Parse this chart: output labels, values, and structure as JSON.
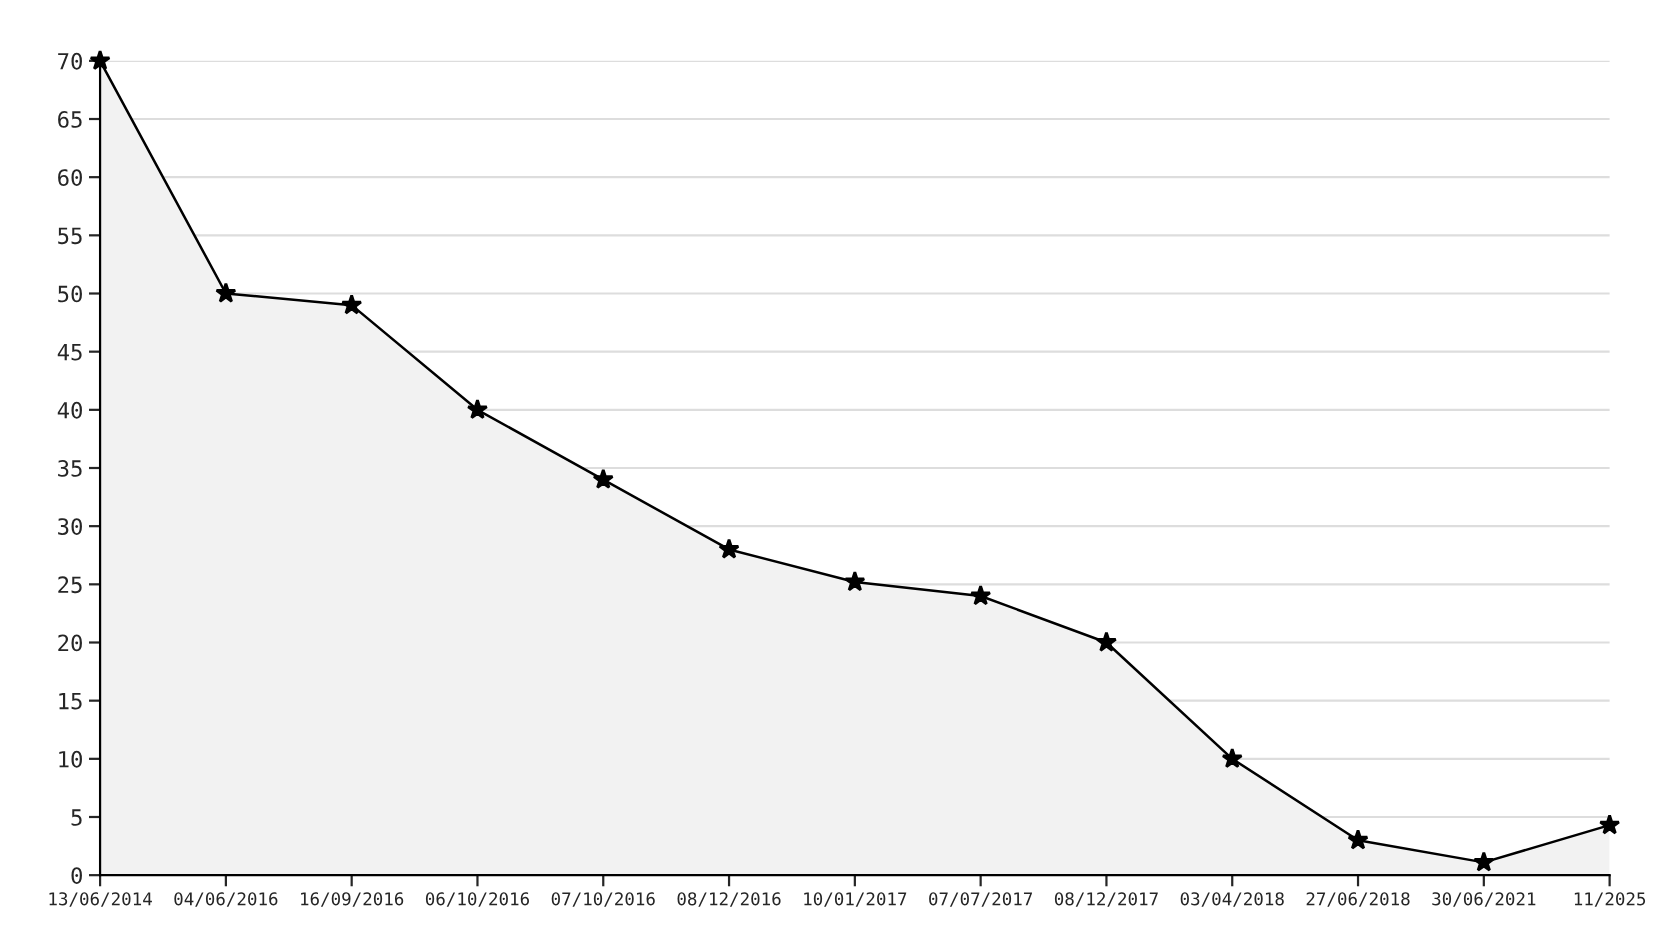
{
  "chart_data": {
    "type": "area",
    "categories": [
      "13/06/2014",
      "04/06/2016",
      "16/09/2016",
      "06/10/2016",
      "07/10/2016",
      "08/12/2016",
      "10/01/2017",
      "07/07/2017",
      "08/12/2017",
      "03/04/2018",
      "27/06/2018",
      "30/06/2021",
      "11/2025"
    ],
    "series": [
      {
        "color": "#f2f2f2",
        "values": [
          70,
          50,
          49,
          40,
          34,
          28,
          25.2,
          24,
          20,
          10,
          3,
          1.1,
          4.3
        ]
      }
    ],
    "ylim": [
      0,
      70
    ],
    "yticks": [
      0,
      5,
      10,
      15,
      20,
      25,
      30,
      35,
      40,
      45,
      50,
      55,
      60,
      65,
      70
    ],
    "grid": "y",
    "marker": "star",
    "line_style": "solid",
    "legend": false
  }
}
